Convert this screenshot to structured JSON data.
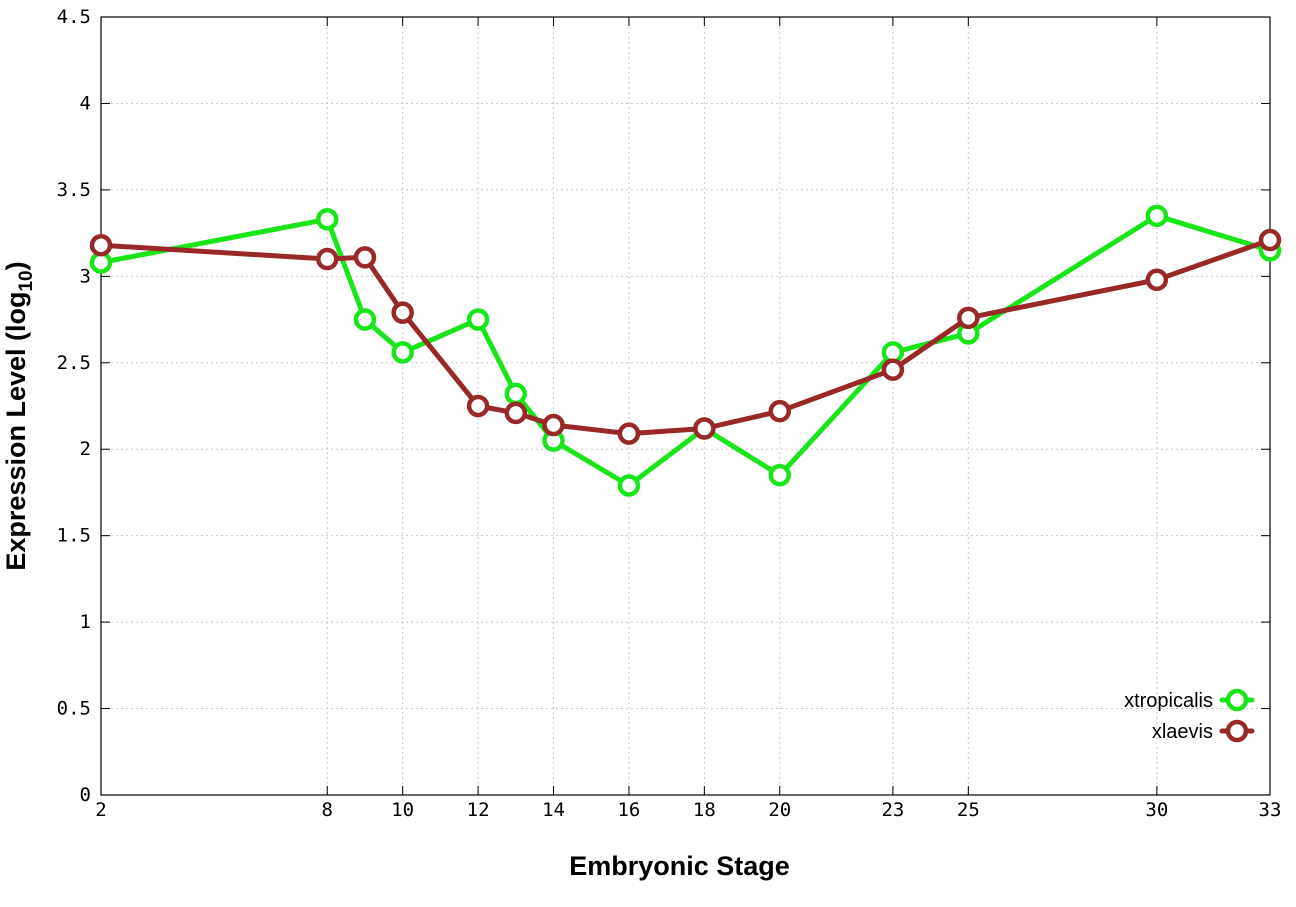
{
  "chart_data": {
    "type": "line",
    "xlabel": "Embryonic Stage",
    "ylabel_main": "Expression Level (log",
    "ylabel_sub": "10",
    "ylabel_close": ")",
    "xlim": [
      2,
      33
    ],
    "ylim": [
      0,
      4.5
    ],
    "grid": true,
    "legend_position": "bottom-right",
    "x_ticks": [
      2,
      8,
      10,
      12,
      14,
      16,
      18,
      20,
      23,
      25,
      30,
      33
    ],
    "y_ticks": [
      "0",
      "0.5",
      "1",
      "1.5",
      "2",
      "2.5",
      "3",
      "3.5",
      "4",
      "4.5"
    ],
    "series": [
      {
        "name": "xtropicalis",
        "color": "#19e619",
        "x": [
          2,
          8,
          9,
          10,
          12,
          13,
          14,
          16,
          18,
          20,
          23,
          25,
          30,
          33
        ],
        "y": [
          3.08,
          3.33,
          2.75,
          2.56,
          2.75,
          2.32,
          2.05,
          1.79,
          2.12,
          1.85,
          2.56,
          2.67,
          3.35,
          3.15
        ]
      },
      {
        "name": "xlaevis",
        "color": "#992929",
        "x": [
          2,
          8,
          9,
          10,
          12,
          13,
          14,
          16,
          18,
          20,
          23,
          25,
          30,
          33
        ],
        "y": [
          3.18,
          3.1,
          3.11,
          2.79,
          2.25,
          2.21,
          2.14,
          2.09,
          2.12,
          2.22,
          2.46,
          2.76,
          2.98,
          3.21
        ]
      }
    ]
  }
}
